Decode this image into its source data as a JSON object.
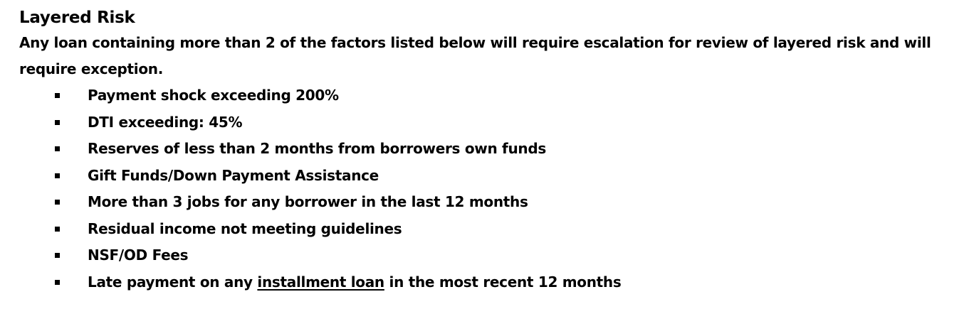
{
  "title": "Layered Risk",
  "intro": "Any loan containing more than 2 of the factors listed below will require escalation for review of layered risk and will require exception.",
  "factors": [
    {
      "text": "Payment shock exceeding 200%"
    },
    {
      "text": "DTI exceeding: 45%"
    },
    {
      "text": "Reserves of less than 2 months from borrowers own funds"
    },
    {
      "text": "Gift Funds/Down Payment Assistance"
    },
    {
      "text": "More than 3 jobs for any borrower in the last 12 months"
    },
    {
      "text": "Residual income not meeting guidelines"
    },
    {
      "text": "NSF/OD Fees"
    },
    {
      "pre": "Late payment on any ",
      "underlined": "installment loan",
      "post": " in the most recent 12 months"
    }
  ]
}
